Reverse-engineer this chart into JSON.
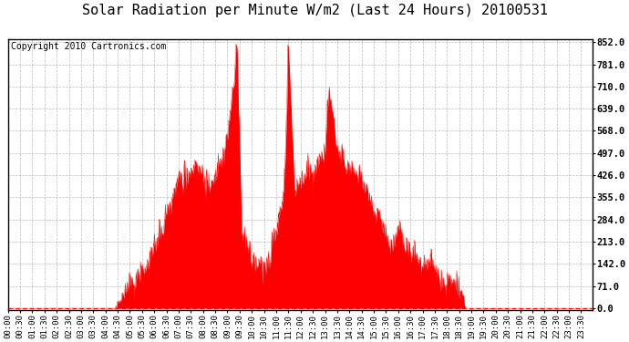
{
  "title": "Solar Radiation per Minute W/m2 (Last 24 Hours) 20100531",
  "copyright": "Copyright 2010 Cartronics.com",
  "yticks": [
    0.0,
    71.0,
    142.0,
    213.0,
    284.0,
    355.0,
    426.0,
    497.0,
    568.0,
    639.0,
    710.0,
    781.0,
    852.0
  ],
  "ymax": 852.0,
  "ymin": 0.0,
  "bg_color": "#ffffff",
  "plot_bg_color": "#ffffff",
  "line_color": "#ff0000",
  "fill_color": "#ff0000",
  "grid_color": "#aaaaaa",
  "title_fontsize": 11,
  "copyright_fontsize": 7,
  "tick_fontsize": 6.5,
  "ytick_fontsize": 7.5,
  "num_points": 1440,
  "xtick_labels": [
    "00:00",
    "00:30",
    "01:00",
    "01:30",
    "02:00",
    "02:30",
    "03:00",
    "03:30",
    "04:00",
    "04:30",
    "05:00",
    "05:30",
    "06:00",
    "06:30",
    "07:00",
    "07:30",
    "08:00",
    "08:30",
    "09:00",
    "09:30",
    "10:00",
    "10:30",
    "11:00",
    "11:30",
    "12:00",
    "12:30",
    "13:00",
    "13:30",
    "14:00",
    "14:30",
    "15:00",
    "15:30",
    "16:00",
    "16:30",
    "17:00",
    "17:30",
    "18:00",
    "18:30",
    "19:00",
    "19:30",
    "20:00",
    "20:30",
    "21:00",
    "21:30",
    "22:00",
    "22:30",
    "23:00",
    "23:30"
  ],
  "xtick_positions": [
    0,
    30,
    60,
    90,
    120,
    150,
    180,
    210,
    240,
    270,
    300,
    330,
    360,
    390,
    420,
    450,
    480,
    510,
    540,
    570,
    600,
    630,
    660,
    690,
    720,
    750,
    780,
    810,
    840,
    870,
    900,
    930,
    960,
    990,
    1020,
    1050,
    1080,
    1110,
    1140,
    1170,
    1200,
    1230,
    1260,
    1290,
    1320,
    1350,
    1380,
    1410
  ]
}
